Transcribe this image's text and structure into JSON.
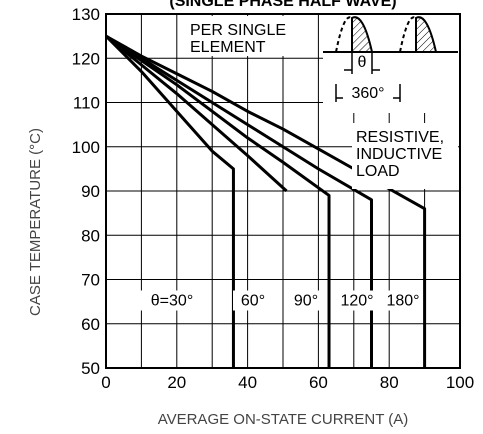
{
  "chart_data": {
    "type": "line",
    "title": "(SINGLE PHASE HALF WAVE)",
    "xlabel": "AVERAGE ON-STATE CURRENT (A)",
    "ylabel": "CASE TEMPERATURE (°C)",
    "xlim": [
      0,
      100
    ],
    "ylim": [
      50,
      130
    ],
    "x_ticks": [
      "0",
      "20",
      "40",
      "60",
      "80",
      "100"
    ],
    "y_ticks": [
      "50",
      "60",
      "70",
      "80",
      "90",
      "100",
      "110",
      "120",
      "130"
    ],
    "grid": true,
    "annotations": {
      "element": [
        "PER SINGLE",
        "ELEMENT"
      ],
      "load": [
        "RESISTIVE,",
        "INDUCTIVE",
        "LOAD"
      ],
      "theta_symbol": "θ",
      "period": "360°"
    },
    "series": [
      {
        "name": "θ=30°",
        "x": [
          0,
          10,
          20,
          30,
          36,
          36
        ],
        "y": [
          125,
          117,
          108,
          99,
          95,
          50
        ]
      },
      {
        "name": "60°",
        "x": [
          0,
          10,
          20,
          30,
          40,
          51,
          51
        ],
        "y": [
          125,
          118.5,
          112,
          105,
          98,
          90,
          90
        ]
      },
      {
        "name": "90°",
        "x": [
          0,
          10,
          20,
          30,
          40,
          50,
          63,
          63
        ],
        "y": [
          125,
          119.5,
          114,
          108,
          102,
          96.5,
          89,
          50
        ]
      },
      {
        "name": "120°",
        "x": [
          0,
          10,
          20,
          30,
          40,
          50,
          60,
          75,
          75
        ],
        "y": [
          125,
          120,
          115,
          110,
          105,
          100,
          95,
          88,
          50
        ]
      },
      {
        "name": "180°",
        "x": [
          0,
          10,
          20,
          30,
          40,
          50,
          60,
          70,
          80,
          90,
          90
        ],
        "y": [
          125,
          120.5,
          116.5,
          112.5,
          108,
          104,
          99.5,
          95,
          90.5,
          86,
          50
        ]
      }
    ]
  }
}
